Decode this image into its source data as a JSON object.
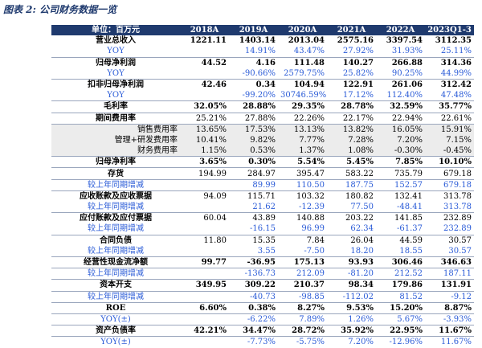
{
  "title": "图表 2:  公司财务数据一览",
  "table": {
    "header": [
      "单位：百万元",
      "2018A",
      "2019A",
      "2020A",
      "2021A",
      "2022A",
      "2023Q1-3"
    ],
    "rows": [
      [
        "营业总收入",
        "1221.11",
        "1403.14",
        "2013.04",
        "2575.16",
        "3397.54",
        "3112.35"
      ],
      [
        "YOY",
        null,
        "14.91%",
        "43.47%",
        "27.92%",
        "31.93%",
        "25.11%"
      ],
      [
        "归母净利润",
        "44.52",
        "4.16",
        "111.48",
        "140.27",
        "266.88",
        "314.36"
      ],
      [
        "YOY",
        null,
        "-90.66%",
        "2579.75%",
        "25.82%",
        "90.25%",
        "44.99%"
      ],
      [
        "扣非归母净利润",
        "42.46",
        "0.34",
        "104.94",
        "122.91",
        "261.06",
        "312.42"
      ],
      [
        "YOY",
        null,
        "-99.20%",
        "30746.59%",
        "17.12%",
        "112.40%",
        "47.48%"
      ],
      [
        "毛利率",
        "32.05%",
        "28.88%",
        "29.35%",
        "28.78%",
        "32.59%",
        "35.77%"
      ],
      [
        "期间费用率",
        "25.21%",
        "27.88%",
        "22.26%",
        "22.17%",
        "22.94%",
        "22.61%"
      ],
      [
        "销售费用率",
        "13.65%",
        "17.53%",
        "13.13%",
        "13.82%",
        "16.05%",
        "15.91%"
      ],
      [
        "管理+研发费用率",
        "10.41%",
        "9.82%",
        "7.77%",
        "7.28%",
        "7.20%",
        "7.15%"
      ],
      [
        "财务费用率",
        "1.15%",
        "0.53%",
        "1.37%",
        "1.08%",
        "-0.30%",
        "-0.45%"
      ],
      [
        "归母净利率",
        "3.65%",
        "0.30%",
        "5.54%",
        "5.45%",
        "7.85%",
        "10.10%"
      ],
      [
        "存货",
        "194.99",
        "284.97",
        "395.47",
        "583.22",
        "735.79",
        "679.18"
      ],
      [
        "较上年同期增减",
        null,
        "89.99",
        "110.50",
        "187.75",
        "152.57",
        "679.18"
      ],
      [
        "应收账款及应收票据",
        "94.09",
        "115.71",
        "103.32",
        "180.82",
        "132.41",
        "313.78"
      ],
      [
        "较上年同期增减",
        null,
        "21.62",
        "-12.39",
        "77.50",
        "-48.41",
        "313.78"
      ],
      [
        "应付账款及应付票据",
        "60.04",
        "43.89",
        "140.88",
        "203.22",
        "141.85",
        "232.89"
      ],
      [
        "较上年同期增减",
        null,
        "-16.15",
        "96.99",
        "62.34",
        "-61.37",
        "232.89"
      ],
      [
        "合同负债",
        "11.80",
        "15.35",
        "7.84",
        "26.04",
        "44.59",
        "30.57"
      ],
      [
        "较上年同期增减",
        null,
        "3.55",
        "-7.50",
        "18.20",
        "18.55",
        "30.57"
      ],
      [
        "经营性现金流净额",
        "99.77",
        "-36.95",
        "175.13",
        "93.93",
        "306.46",
        "346.63"
      ],
      [
        "较上年同期增减",
        null,
        "-136.73",
        "212.09",
        "-81.20",
        "212.52",
        "187.11"
      ],
      [
        "资本开支",
        "349.95",
        "309.22",
        "210.37",
        "98.34",
        "179.86",
        "131.91"
      ],
      [
        "较上年同期增减",
        null,
        "-40.73",
        "-98.85",
        "-112.02",
        "81.52",
        "-9.12"
      ],
      [
        "ROE",
        "6.60%",
        "0.38%",
        "8.27%",
        "9.53%",
        "15.20%",
        "8.87%"
      ],
      [
        "YOY(±)",
        null,
        "-6.22%",
        "7.89%",
        "1.26%",
        "5.67%",
        "-3.93%"
      ],
      [
        "资产负债率",
        "42.21%",
        "34.47%",
        "28.72%",
        "35.92%",
        "22.95%",
        "11.67%"
      ],
      [
        "YOY(±)",
        null,
        "-7.73%",
        "-5.75%",
        "7.20%",
        "-12.96%",
        "11.67%"
      ]
    ]
  }
}
